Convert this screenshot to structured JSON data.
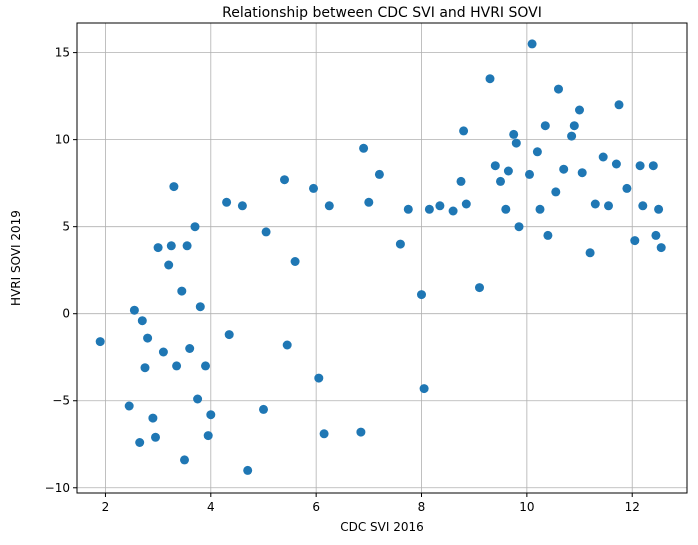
{
  "chart_data": {
    "type": "scatter",
    "title": "Relationship between CDC SVI and HVRI SOVI",
    "xlabel": "CDC SVI 2016",
    "ylabel": "HVRI SOVI 2019",
    "xlim": [
      1.46,
      13.04
    ],
    "ylim": [
      -10.3,
      16.7
    ],
    "xticks": [
      2,
      4,
      6,
      8,
      10,
      12
    ],
    "yticks": [
      -10,
      -5,
      0,
      5,
      10,
      15
    ],
    "xtick_labels": [
      "2",
      "4",
      "6",
      "8",
      "10",
      "12"
    ],
    "ytick_labels": [
      "−10",
      "−5",
      "0",
      "5",
      "10",
      "15"
    ],
    "grid": true,
    "marker_color": "#1f77b4",
    "series": [
      {
        "x": [
          1.9,
          2.45,
          2.55,
          2.65,
          2.7,
          2.75,
          2.8,
          2.9,
          2.95,
          3.0,
          3.1,
          3.2,
          3.25,
          3.3,
          3.35,
          3.45,
          3.5,
          3.55,
          3.6,
          3.7,
          3.75,
          3.8,
          3.9,
          3.95,
          4.0,
          4.3,
          4.35,
          4.6,
          4.7,
          5.0,
          5.05,
          5.4,
          5.45,
          5.6,
          5.95,
          6.15,
          6.25,
          6.05,
          6.85,
          6.9,
          7.0,
          7.2,
          7.6,
          7.75,
          8.0,
          8.05,
          8.15,
          8.35,
          8.6,
          8.75,
          8.8,
          8.85,
          9.1,
          9.3,
          9.4,
          9.5,
          9.6,
          9.65,
          9.75,
          9.8,
          9.85,
          10.05,
          10.1,
          10.2,
          10.25,
          10.35,
          10.4,
          10.55,
          10.6,
          10.7,
          10.85,
          10.9,
          11.0,
          11.05,
          11.2,
          11.3,
          11.45,
          11.55,
          11.7,
          11.75,
          11.9,
          12.05,
          12.15,
          12.2,
          12.4,
          12.45,
          12.5,
          12.55
        ],
        "y": [
          -1.6,
          -5.3,
          0.2,
          -7.4,
          -0.4,
          -3.1,
          -1.4,
          -6.0,
          -7.1,
          3.8,
          -2.2,
          2.8,
          3.9,
          7.3,
          -3.0,
          1.3,
          -8.4,
          3.9,
          -2.0,
          5.0,
          -4.9,
          0.4,
          -3.0,
          -7.0,
          -5.8,
          6.4,
          -1.2,
          6.2,
          -9.0,
          -5.5,
          4.7,
          7.7,
          -1.8,
          3.0,
          7.2,
          -6.9,
          6.2,
          -3.7,
          -6.8,
          9.5,
          6.4,
          8.0,
          4.0,
          6.0,
          1.1,
          -4.3,
          6.0,
          6.2,
          5.9,
          7.6,
          10.5,
          6.3,
          1.5,
          13.5,
          8.5,
          7.6,
          6.0,
          8.2,
          10.3,
          9.8,
          5.0,
          8.0,
          15.5,
          9.3,
          6.0,
          10.8,
          4.5,
          7.0,
          12.9,
          8.3,
          10.2,
          10.8,
          11.7,
          8.1,
          3.5,
          6.3,
          9.0,
          6.2,
          8.6,
          12.0,
          7.2,
          4.2,
          8.5,
          6.2,
          8.5,
          4.5,
          6.0,
          3.8
        ]
      }
    ]
  }
}
